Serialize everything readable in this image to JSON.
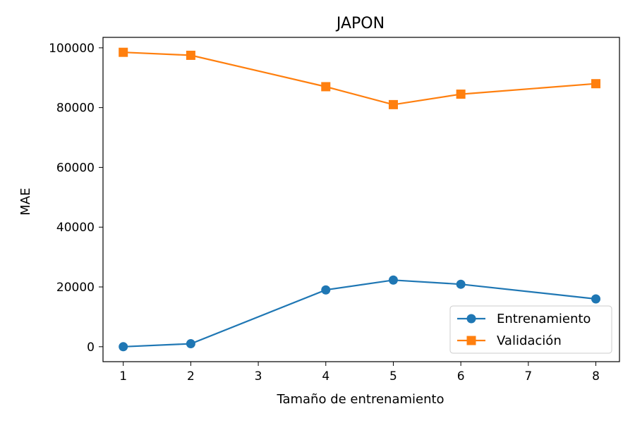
{
  "chart_data": {
    "type": "line",
    "title": "JAPON",
    "xlabel": "Tamaño de entrenamiento",
    "ylabel": "MAE",
    "x": [
      1,
      2,
      4,
      5,
      6,
      8
    ],
    "xlim": [
      0.7,
      8.35
    ],
    "ylim": [
      -5000,
      103500
    ],
    "xticks": [
      "1",
      "2",
      "3",
      "4",
      "5",
      "6",
      "7",
      "8"
    ],
    "yticks": [
      "0",
      "20000",
      "40000",
      "60000",
      "80000",
      "100000"
    ],
    "grid": false,
    "legend_position": "lower-right",
    "series": [
      {
        "name": "Entrenamiento",
        "values": [
          0,
          1000,
          19000,
          22300,
          20900,
          16000
        ],
        "color": "#1f77b4",
        "marker": "circle"
      },
      {
        "name": "Validación",
        "values": [
          98500,
          97500,
          87000,
          81000,
          84500,
          88000
        ],
        "color": "#ff7f0e",
        "marker": "square"
      }
    ]
  }
}
